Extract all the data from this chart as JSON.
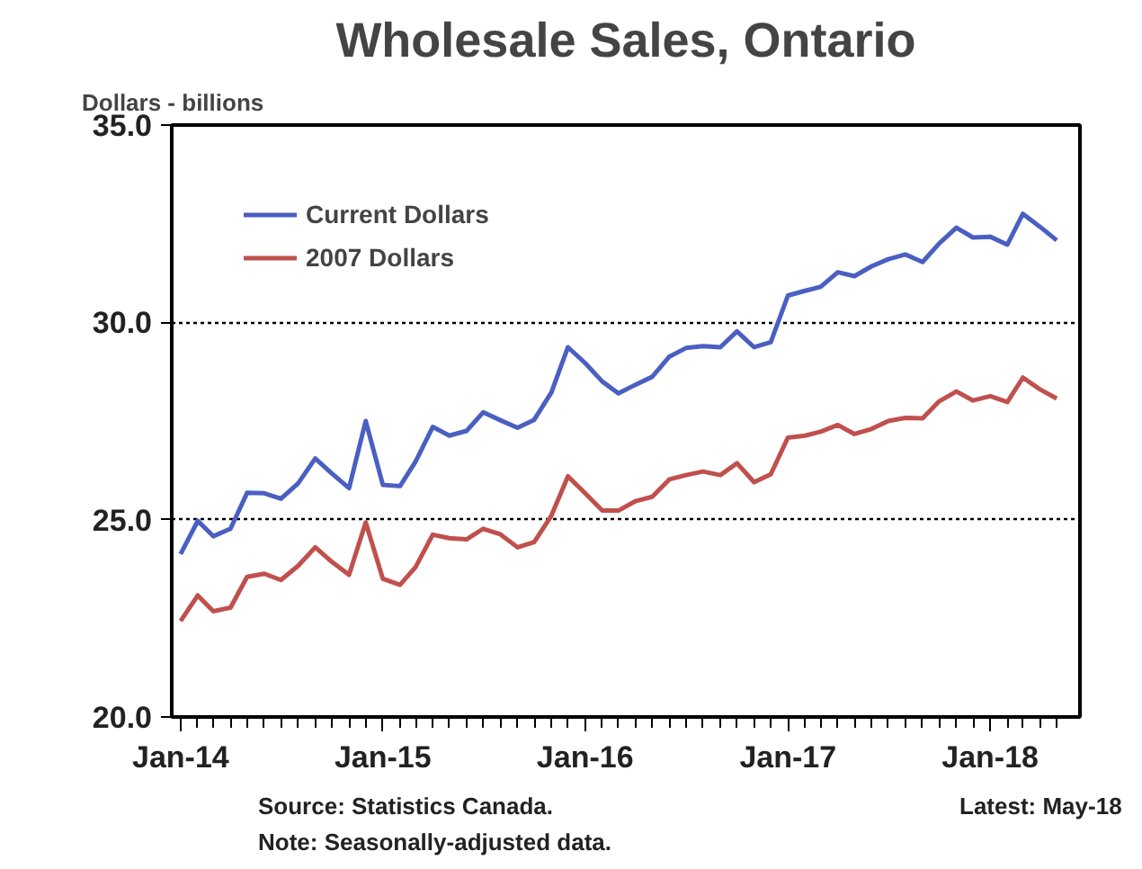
{
  "chart_data": {
    "type": "line",
    "title": "Wholesale Sales, Ontario",
    "ylabel": "Dollars - billions",
    "x": [
      "2014-01",
      "2014-02",
      "2014-03",
      "2014-04",
      "2014-05",
      "2014-06",
      "2014-07",
      "2014-08",
      "2014-09",
      "2014-10",
      "2014-11",
      "2014-12",
      "2015-01",
      "2015-02",
      "2015-03",
      "2015-04",
      "2015-05",
      "2015-06",
      "2015-07",
      "2015-08",
      "2015-09",
      "2015-10",
      "2015-11",
      "2015-12",
      "2016-01",
      "2016-02",
      "2016-03",
      "2016-04",
      "2016-05",
      "2016-06",
      "2016-07",
      "2016-08",
      "2016-09",
      "2016-10",
      "2016-11",
      "2016-12",
      "2017-01",
      "2017-02",
      "2017-03",
      "2017-04",
      "2017-05",
      "2017-06",
      "2017-07",
      "2017-08",
      "2017-09",
      "2017-10",
      "2017-11",
      "2017-12",
      "2018-01",
      "2018-02",
      "2018-03",
      "2018-04",
      "2018-05"
    ],
    "series": [
      {
        "name": "Current Dollars",
        "color": "#4a5fc1",
        "values": [
          24.13,
          24.97,
          24.58,
          24.77,
          25.68,
          25.67,
          25.53,
          25.92,
          26.55,
          26.17,
          25.8,
          27.5,
          25.88,
          25.85,
          26.47,
          27.35,
          27.13,
          27.25,
          27.72,
          27.52,
          27.33,
          27.53,
          28.22,
          29.37,
          28.97,
          28.5,
          28.2,
          28.42,
          28.62,
          29.13,
          29.35,
          29.4,
          29.37,
          29.77,
          29.37,
          29.5,
          30.68,
          30.8,
          30.9,
          31.27,
          31.17,
          31.42,
          31.6,
          31.72,
          31.53,
          32.0,
          32.4,
          32.15,
          32.17,
          31.97,
          32.75,
          32.42,
          32.08
        ]
      },
      {
        "name": "2007 Dollars",
        "color": "#c0504d",
        "values": [
          22.43,
          23.08,
          22.68,
          22.77,
          23.55,
          23.63,
          23.47,
          23.83,
          24.3,
          23.93,
          23.6,
          24.93,
          23.5,
          23.35,
          23.8,
          24.62,
          24.53,
          24.5,
          24.77,
          24.63,
          24.3,
          24.43,
          25.1,
          26.1,
          25.67,
          25.23,
          25.23,
          25.47,
          25.58,
          26.02,
          26.13,
          26.22,
          26.13,
          26.43,
          25.95,
          26.15,
          27.08,
          27.13,
          27.23,
          27.4,
          27.17,
          27.3,
          27.5,
          27.58,
          27.57,
          28.0,
          28.25,
          28.02,
          28.13,
          27.98,
          28.6,
          28.3,
          28.07
        ]
      }
    ],
    "xlim": [
      "2013-12-16",
      "2018-06-12"
    ],
    "xticks": [
      {
        "value": "2014-01",
        "label": "Jan-14"
      },
      {
        "value": "2015-01",
        "label": "Jan-15"
      },
      {
        "value": "2016-01",
        "label": "Jan-16"
      },
      {
        "value": "2017-01",
        "label": "Jan-17"
      },
      {
        "value": "2018-01",
        "label": "Jan-18"
      }
    ],
    "ylim": [
      20,
      35
    ],
    "yticks": [
      {
        "value": 20,
        "label": "20.0"
      },
      {
        "value": 25,
        "label": "25.0"
      },
      {
        "value": 30,
        "label": "30.0"
      },
      {
        "value": 35,
        "label": "35.0"
      }
    ],
    "grid": "y",
    "legend": "top left",
    "line_style": "solid",
    "annotations": [
      "Source: Statistics Canada.",
      "Latest: May-18",
      "Note: Seasonally-adjusted data."
    ]
  }
}
